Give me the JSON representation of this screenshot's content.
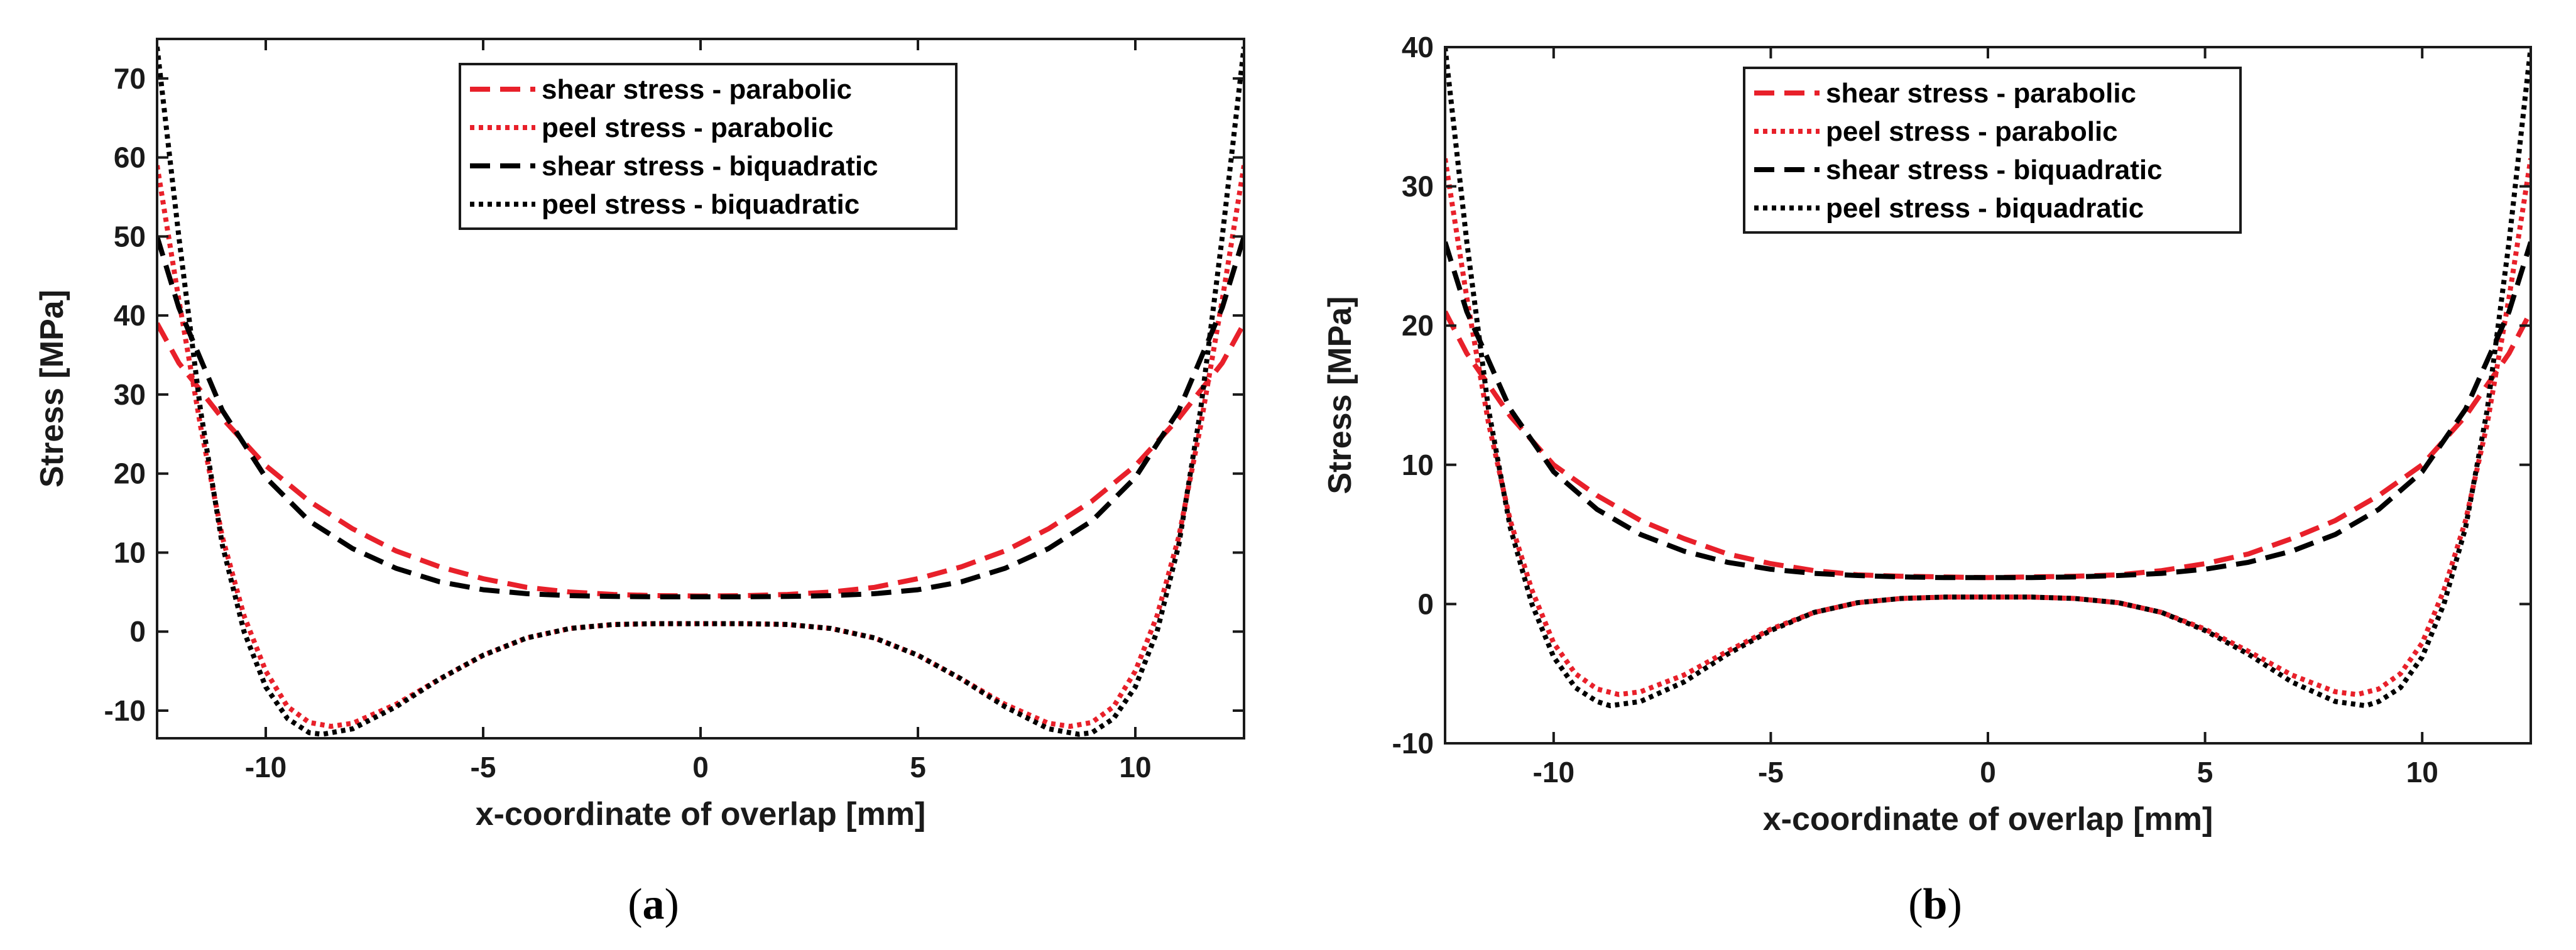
{
  "legend_entries": [
    {
      "label": "shear stress - parabolic",
      "color": "#e8202a",
      "dash": "dashed"
    },
    {
      "label": "peel stress - parabolic",
      "color": "#e8202a",
      "dash": "dotted"
    },
    {
      "label": "shear stress - biquadratic",
      "color": "#000000",
      "dash": "dashed"
    },
    {
      "label": "peel stress - biquadratic",
      "color": "#000000",
      "dash": "dotted"
    }
  ],
  "chart_data": [
    {
      "type": "line",
      "panel_label": "a",
      "xlabel": "x-coordinate of overlap [mm]",
      "ylabel": "Stress [MPa]",
      "xlim": [
        -12.5,
        12.5
      ],
      "ylim": [
        -13.5,
        75
      ],
      "xticks": [
        -10,
        -5,
        0,
        5,
        10
      ],
      "yticks": [
        -10,
        0,
        10,
        20,
        30,
        40,
        50,
        60,
        70
      ],
      "legend_position": "top-center",
      "series": [
        {
          "name": "shear stress - parabolic",
          "color": "#e8202a",
          "style": "dashed",
          "x": [
            -12.5,
            -12,
            -11,
            -10,
            -9,
            -8,
            -7,
            -6,
            -5,
            -4,
            -3,
            -2,
            -1,
            0,
            1,
            2,
            3,
            4,
            5,
            6,
            7,
            8,
            9,
            10,
            11,
            12,
            12.5
          ],
          "y": [
            39,
            34,
            27,
            21,
            16.5,
            13,
            10.2,
            8.2,
            6.7,
            5.6,
            5.0,
            4.7,
            4.55,
            4.5,
            4.55,
            4.7,
            5.0,
            5.6,
            6.7,
            8.2,
            10.2,
            13,
            16.5,
            21,
            27,
            34,
            39
          ]
        },
        {
          "name": "peel stress - parabolic",
          "color": "#e8202a",
          "style": "dotted",
          "x": [
            -12.5,
            -12,
            -11.5,
            -11,
            -10.5,
            -10,
            -9.5,
            -9,
            -8.5,
            -8,
            -7,
            -6,
            -5,
            -4,
            -3,
            -2,
            -1,
            0,
            1,
            2,
            3,
            4,
            5,
            6,
            7,
            8,
            8.5,
            9,
            9.5,
            10,
            10.5,
            11,
            11.5,
            12,
            12.5
          ],
          "y": [
            59,
            42,
            26,
            12,
            2,
            -5,
            -9.5,
            -11.5,
            -12,
            -11.6,
            -9.2,
            -6,
            -3,
            -0.8,
            0.4,
            0.9,
            1.0,
            1.0,
            1.0,
            0.9,
            0.4,
            -0.8,
            -3,
            -6,
            -9.2,
            -11.6,
            -12,
            -11.5,
            -9.5,
            -5,
            2,
            12,
            26,
            42,
            59
          ]
        },
        {
          "name": "shear stress - biquadratic",
          "color": "#000000",
          "style": "dashed",
          "x": [
            -12.5,
            -12,
            -11,
            -10,
            -9,
            -8,
            -7,
            -6,
            -5,
            -4,
            -3,
            -2,
            -1,
            0,
            1,
            2,
            3,
            4,
            5,
            6,
            7,
            8,
            9,
            10,
            11,
            12,
            12.5
          ],
          "y": [
            50,
            41,
            28,
            19.5,
            14,
            10.5,
            8.0,
            6.3,
            5.3,
            4.8,
            4.55,
            4.45,
            4.4,
            4.4,
            4.4,
            4.45,
            4.55,
            4.8,
            5.3,
            6.3,
            8.0,
            10.5,
            14,
            19.5,
            28,
            41,
            50
          ]
        },
        {
          "name": "peel stress - biquadratic",
          "color": "#000000",
          "style": "dotted",
          "x": [
            -12.5,
            -12,
            -11.5,
            -11,
            -10.5,
            -10,
            -9.5,
            -9,
            -8.7,
            -8,
            -7,
            -6,
            -5,
            -4,
            -3,
            -2,
            -1,
            0,
            1,
            2,
            3,
            4,
            5,
            6,
            7,
            8,
            8.7,
            9,
            9.5,
            10,
            10.5,
            11,
            11.5,
            12,
            12.5
          ],
          "y": [
            74,
            50,
            28,
            11,
            0,
            -7,
            -11,
            -12.8,
            -13,
            -12.3,
            -9.5,
            -6,
            -3,
            -0.8,
            0.4,
            0.9,
            1.0,
            1.0,
            1.0,
            0.9,
            0.4,
            -0.8,
            -3,
            -6,
            -9.5,
            -12.3,
            -13,
            -12.8,
            -11,
            -7,
            0,
            11,
            28,
            50,
            74
          ]
        }
      ]
    },
    {
      "type": "line",
      "panel_label": "b",
      "xlabel": "x-coordinate of overlap [mm]",
      "ylabel": "Stress [MPa]",
      "xlim": [
        -12.5,
        12.5
      ],
      "ylim": [
        -10,
        40
      ],
      "xticks": [
        -10,
        -5,
        0,
        5,
        10
      ],
      "yticks": [
        -10,
        0,
        10,
        20,
        30,
        40
      ],
      "legend_position": "top-center",
      "series": [
        {
          "name": "shear stress - parabolic",
          "color": "#e8202a",
          "style": "dashed",
          "x": [
            -12.5,
            -12,
            -11,
            -10,
            -9,
            -8,
            -7,
            -6,
            -5,
            -4,
            -3,
            -2,
            -1,
            0,
            1,
            2,
            3,
            4,
            5,
            6,
            7,
            8,
            9,
            10,
            11,
            12,
            12.5
          ],
          "y": [
            21,
            18,
            13.5,
            10,
            7.8,
            6.0,
            4.7,
            3.6,
            2.9,
            2.4,
            2.1,
            2.0,
            1.95,
            1.9,
            1.95,
            2.0,
            2.1,
            2.4,
            2.9,
            3.6,
            4.7,
            6.0,
            7.8,
            10,
            13.5,
            18,
            21
          ]
        },
        {
          "name": "peel stress - parabolic",
          "color": "#e8202a",
          "style": "dotted",
          "x": [
            -12.5,
            -12,
            -11.5,
            -11,
            -10.5,
            -10,
            -9.5,
            -9,
            -8.5,
            -8,
            -7,
            -6,
            -5,
            -4,
            -3,
            -2,
            -1,
            0,
            1,
            2,
            3,
            4,
            5,
            6,
            7,
            8,
            8.5,
            9,
            9.5,
            10,
            10.5,
            11,
            11.5,
            12,
            12.5
          ],
          "y": [
            32,
            22,
            13,
            6,
            1,
            -2.8,
            -5,
            -6.1,
            -6.5,
            -6.3,
            -5.1,
            -3.4,
            -1.8,
            -0.6,
            0.1,
            0.4,
            0.5,
            0.5,
            0.5,
            0.4,
            0.1,
            -0.6,
            -1.8,
            -3.4,
            -5.1,
            -6.3,
            -6.5,
            -6.1,
            -5,
            -2.8,
            1,
            6,
            13,
            22,
            32
          ]
        },
        {
          "name": "shear stress - biquadratic",
          "color": "#000000",
          "style": "dashed",
          "x": [
            -12.5,
            -12,
            -11,
            -10,
            -9,
            -8,
            -7,
            -6,
            -5,
            -4,
            -3,
            -2,
            -1,
            0,
            1,
            2,
            3,
            4,
            5,
            6,
            7,
            8,
            9,
            10,
            11,
            12,
            12.5
          ],
          "y": [
            26,
            21,
            14,
            9.5,
            6.8,
            5.0,
            3.8,
            3.0,
            2.5,
            2.2,
            2.05,
            1.95,
            1.9,
            1.9,
            1.9,
            1.95,
            2.05,
            2.2,
            2.5,
            3.0,
            3.8,
            5.0,
            6.8,
            9.5,
            14,
            21,
            26
          ]
        },
        {
          "name": "peel stress - biquadratic",
          "color": "#000000",
          "style": "dotted",
          "x": [
            -12.5,
            -12,
            -11.5,
            -11,
            -10.5,
            -10,
            -9.5,
            -9,
            -8.7,
            -8,
            -7,
            -6,
            -5,
            -4,
            -3,
            -2,
            -1,
            0,
            1,
            2,
            3,
            4,
            5,
            6,
            7,
            8,
            8.7,
            9,
            9.5,
            10,
            10.5,
            11,
            11.5,
            12,
            12.5
          ],
          "y": [
            40,
            26,
            14,
            5.5,
            0,
            -3.8,
            -6,
            -7,
            -7.3,
            -7.0,
            -5.6,
            -3.6,
            -1.9,
            -0.6,
            0.1,
            0.4,
            0.5,
            0.5,
            0.5,
            0.4,
            0.1,
            -0.6,
            -1.9,
            -3.6,
            -5.6,
            -7.0,
            -7.3,
            -7,
            -6,
            -3.8,
            0,
            5.5,
            14,
            26,
            40
          ]
        }
      ]
    }
  ],
  "panel_captions": [
    {
      "open": "(",
      "letter": "a",
      "close": ")"
    },
    {
      "open": "(",
      "letter": "b",
      "close": ")"
    }
  ]
}
